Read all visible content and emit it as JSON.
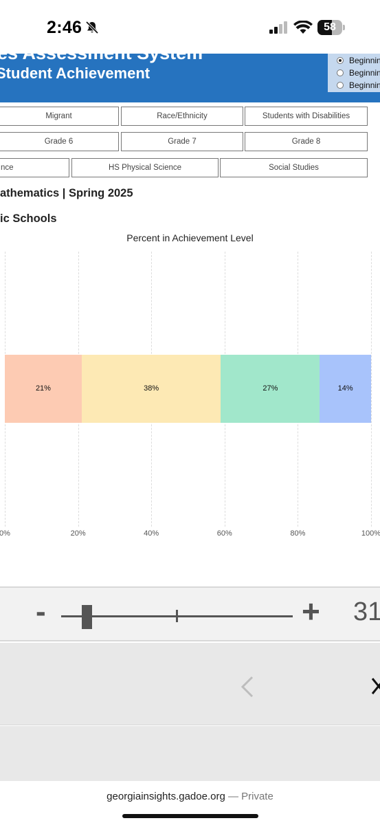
{
  "status_bar": {
    "time": "2:46",
    "battery": "58",
    "battery_level": 0.58,
    "icons": [
      "bell-slash-icon",
      "cellular-signal-icon",
      "wifi-icon",
      "battery-icon"
    ]
  },
  "header": {
    "title_line1": "es Assessment System",
    "title_line2": "Student Achievement",
    "background_color": "#2673bf",
    "radio_options": [
      {
        "label": "Beginning",
        "selected": true
      },
      {
        "label": "Beginning",
        "selected": false
      },
      {
        "label": "Beginning",
        "selected": false
      }
    ]
  },
  "filter_buttons": {
    "row1": [
      "Migrant",
      "Race/Ethnicity",
      "Students with Disabilities"
    ],
    "row2": [
      "Grade 6",
      "Grade 7",
      "Grade 8"
    ],
    "row3": [
      "nce",
      "HS Physical Science",
      "Social Studies"
    ]
  },
  "report": {
    "headline": "athematics | Spring 2025",
    "subheadline": "ic Schools"
  },
  "chart_data": {
    "type": "bar",
    "orientation": "horizontal-stacked",
    "title": "Percent in Achievement Level",
    "xlim": [
      0,
      100
    ],
    "x_ticks": [
      "0%",
      "20%",
      "40%",
      "60%",
      "80%",
      "100%"
    ],
    "grid": true,
    "series": [
      {
        "value": 21,
        "label": "21%",
        "color": "#fdcbb3"
      },
      {
        "value": 38,
        "label": "38%",
        "color": "#fde9b4"
      },
      {
        "value": 27,
        "label": "27%",
        "color": "#a1e7cb"
      },
      {
        "value": 14,
        "label": "14%",
        "color": "#a8c3fb"
      }
    ]
  },
  "zoom": {
    "minus_label": "-",
    "plus_label": "+",
    "value": "31",
    "level": 0.11
  },
  "browser": {
    "url": "georgiainsights.gadoe.org",
    "url_suffix": " — Private",
    "icons": [
      "chevron-left-icon",
      "close-icon"
    ]
  }
}
